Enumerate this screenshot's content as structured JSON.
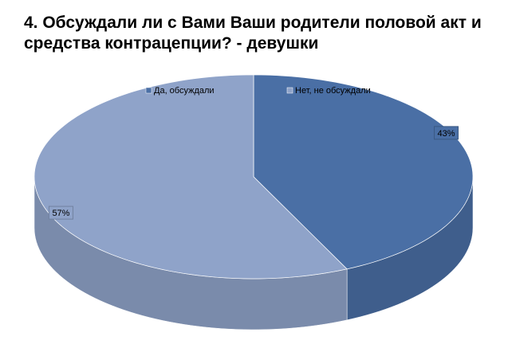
{
  "chart_data": {
    "type": "pie3d",
    "title": "4. Обсуждали ли с Вами Ваши родители половой акт и средства контрацепции? - девушки",
    "categories": [
      "Да, обсуждали",
      "Нет, не обсуждали"
    ],
    "values": [
      43,
      57
    ],
    "value_labels": [
      "43%",
      "57%"
    ],
    "colors": [
      "#4a6fa5",
      "#8fa3c9"
    ],
    "legend": "top"
  }
}
